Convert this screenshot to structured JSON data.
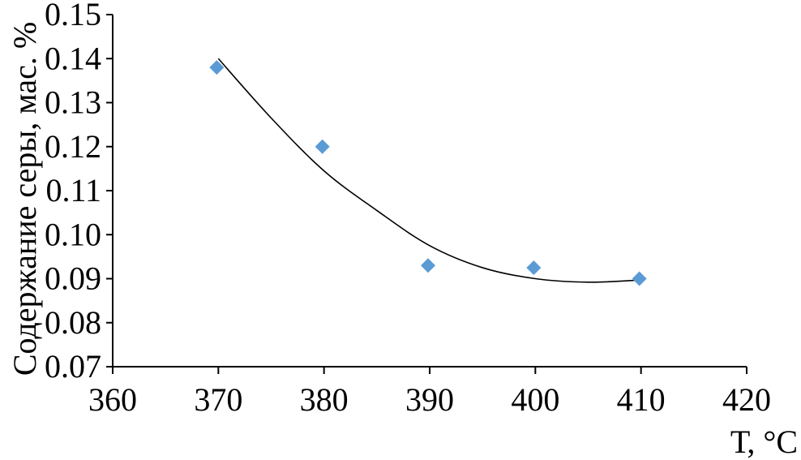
{
  "chart_data": {
    "type": "scatter",
    "xlabel": "Т, °C",
    "ylabel": "Содержание серы, мас. %",
    "xlim": [
      360,
      420
    ],
    "ylim": [
      0.07,
      0.15
    ],
    "x_ticks": [
      "360",
      "370",
      "380",
      "390",
      "400",
      "410",
      "420"
    ],
    "y_ticks": [
      "0.07",
      "0.08",
      "0.09",
      "0.10",
      "0.11",
      "0.12",
      "0.13",
      "0.14",
      "0.15"
    ],
    "grid": false,
    "legend": "none",
    "marker": "diamond",
    "series": [
      {
        "x": [
          370,
          380,
          390,
          400,
          410
        ],
        "y": [
          0.138,
          0.12,
          0.093,
          0.0925,
          0.09
        ]
      }
    ],
    "trendline": {
      "type": "polynomial",
      "x": [
        370,
        375,
        380,
        385,
        390,
        395,
        400,
        405,
        410
      ],
      "y": [
        0.14,
        0.1265,
        0.1145,
        0.1055,
        0.0975,
        0.0925,
        0.09,
        0.0892,
        0.0897
      ]
    },
    "colors": {
      "marker": "#5B9BD5",
      "trendline": "#000000",
      "axis": "#000000"
    }
  }
}
